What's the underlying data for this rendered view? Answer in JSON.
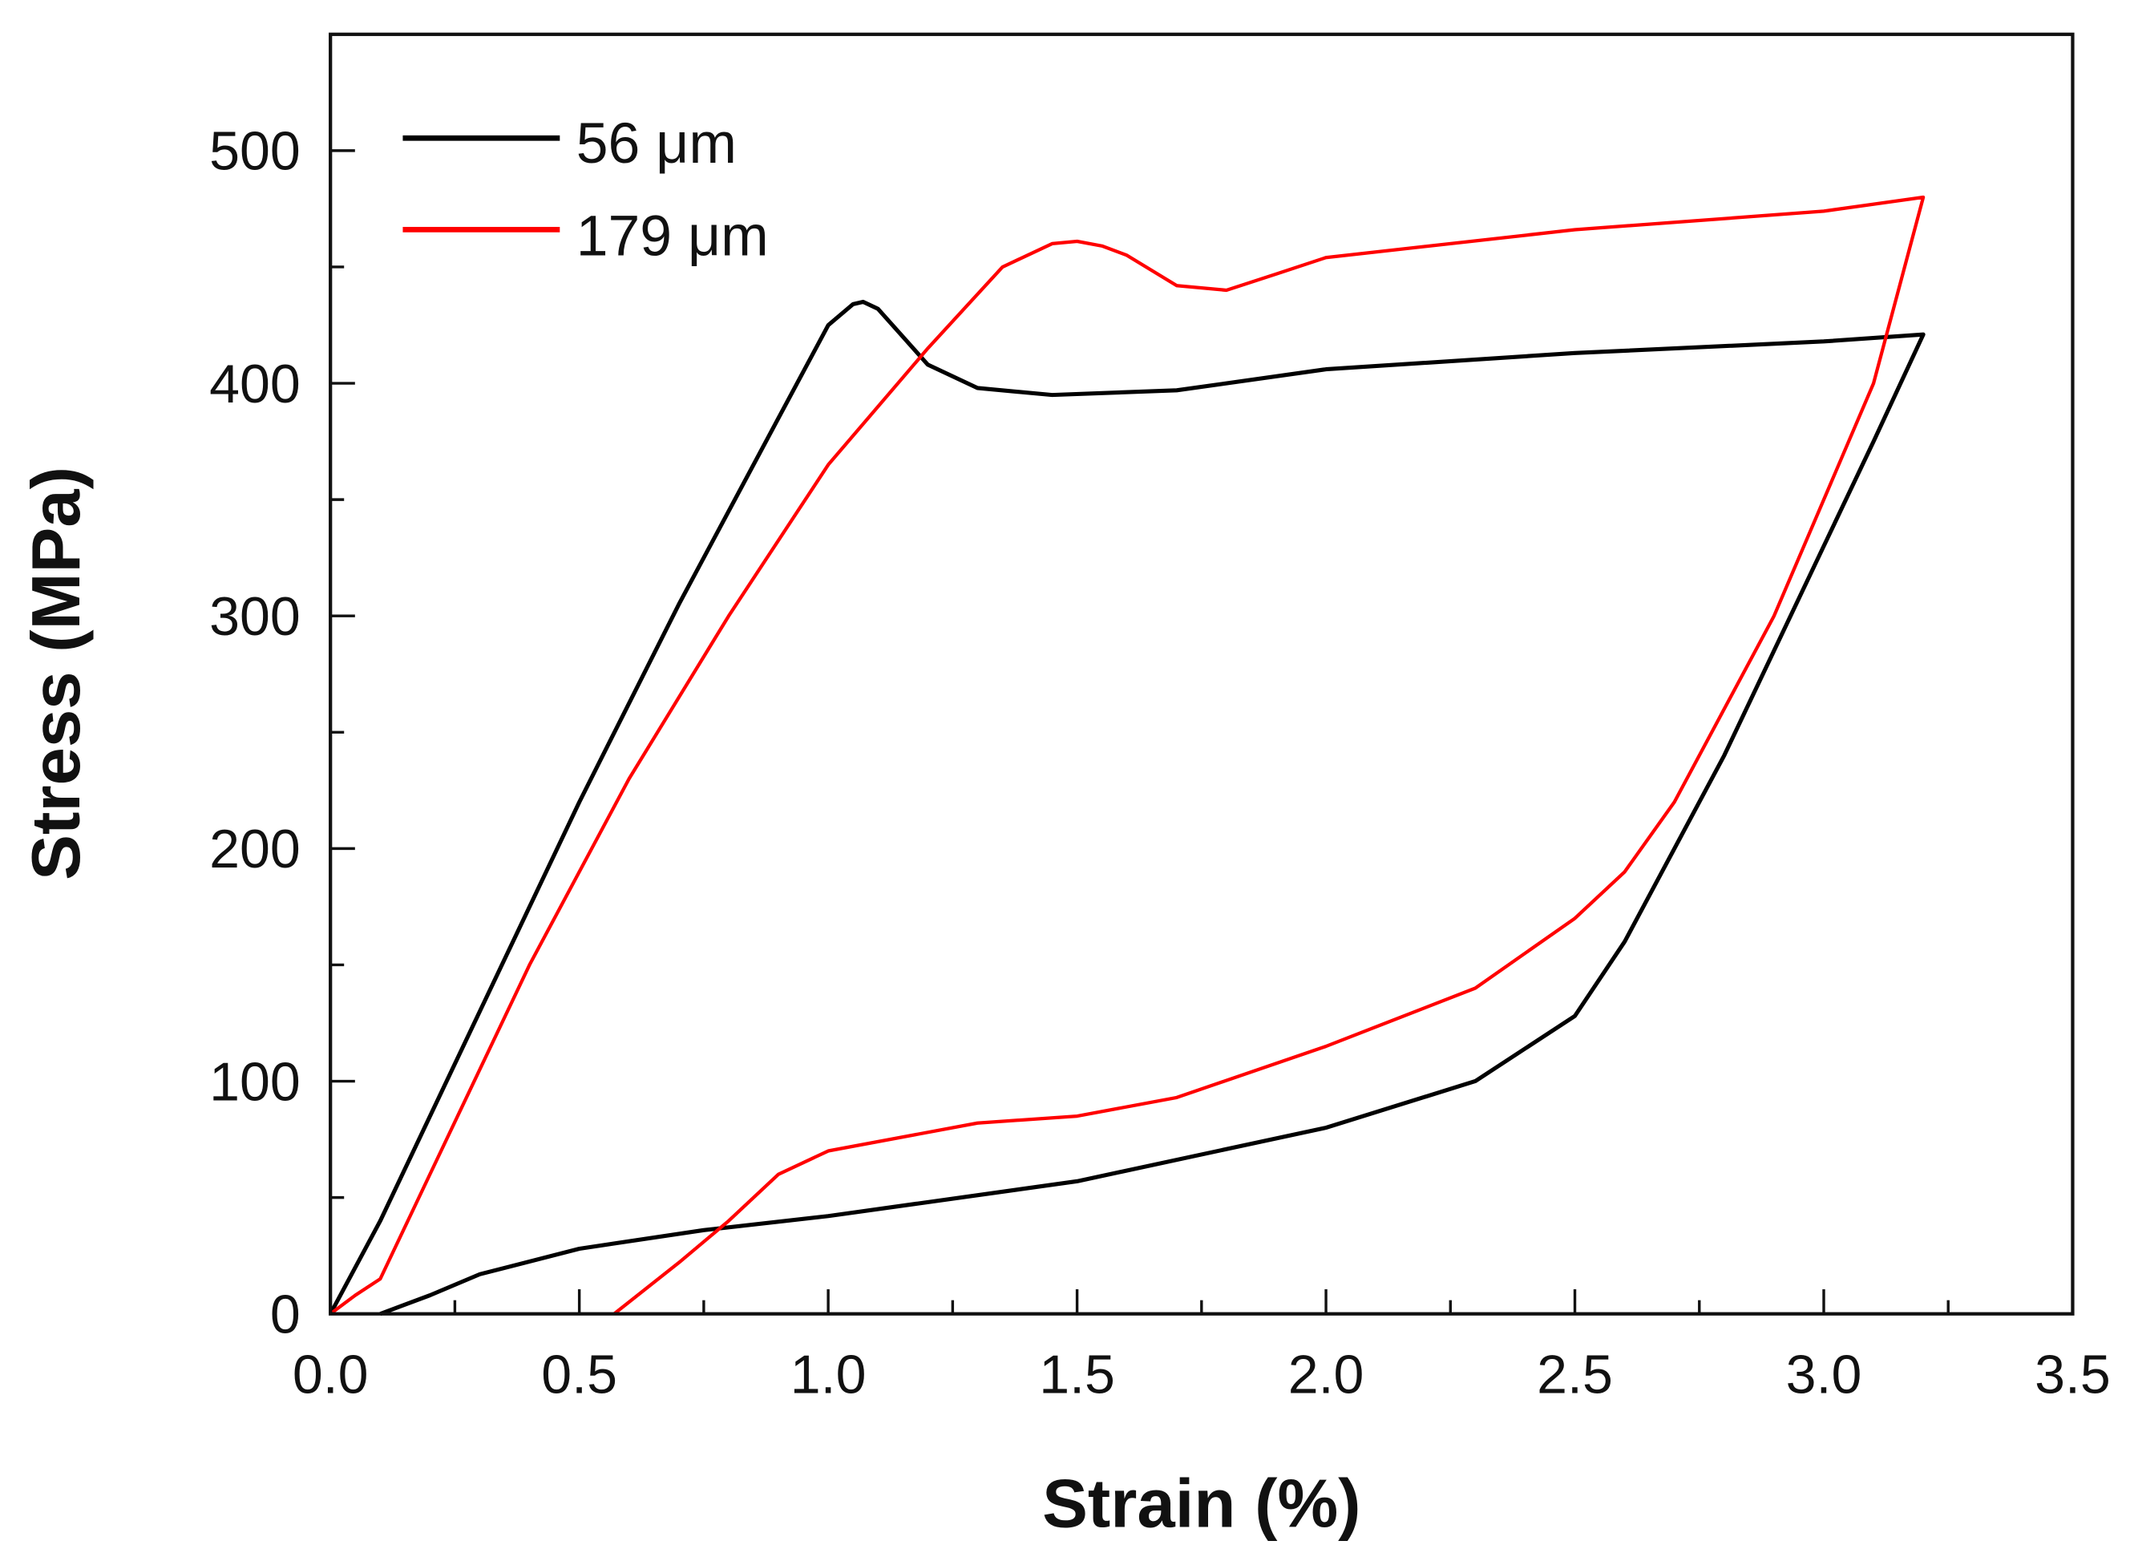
{
  "chart_data": {
    "type": "line",
    "title": "",
    "xlabel": "Strain (%)",
    "ylabel": "Stress (MPa)",
    "xlim": [
      0,
      3.5
    ],
    "ylim": [
      0,
      550
    ],
    "xticks": [
      "0.0",
      "0.5",
      "1.0",
      "1.5",
      "2.0",
      "2.5",
      "3.0",
      "3.5"
    ],
    "xtick_values": [
      0,
      0.5,
      1.0,
      1.5,
      2.0,
      2.5,
      3.0,
      3.5
    ],
    "yticks": [
      "0",
      "100",
      "200",
      "300",
      "400",
      "500"
    ],
    "ytick_values": [
      0,
      100,
      200,
      300,
      400,
      500
    ],
    "grid": false,
    "legend_position": "top-left",
    "series": [
      {
        "name": "56 μm",
        "color": "#000000",
        "x": [
          0,
          0.1,
          0.3,
          0.5,
          0.7,
          0.9,
          1.0,
          1.05,
          1.07,
          1.1,
          1.15,
          1.2,
          1.3,
          1.45,
          1.7,
          2.0,
          2.5,
          3.0,
          3.2,
          3.1,
          3.0,
          2.8,
          2.6,
          2.5,
          2.3,
          2.0,
          1.5,
          1.0,
          0.75,
          0.5,
          0.3,
          0.2,
          0.1
        ],
        "y": [
          0,
          40,
          130,
          220,
          305,
          385,
          425,
          434,
          435,
          432,
          420,
          408,
          398,
          395,
          397,
          406,
          413,
          418,
          421,
          375,
          330,
          240,
          160,
          128,
          100,
          80,
          57,
          42,
          36,
          28,
          17,
          8,
          0
        ]
      },
      {
        "name": "179 μm",
        "color": "#ff0000",
        "x": [
          0,
          0.05,
          0.1,
          0.2,
          0.4,
          0.6,
          0.8,
          1.0,
          1.2,
          1.35,
          1.45,
          1.5,
          1.55,
          1.6,
          1.7,
          1.8,
          1.9,
          2.0,
          2.5,
          3.0,
          3.2,
          3.1,
          2.9,
          2.7,
          2.6,
          2.5,
          2.3,
          2.0,
          1.7,
          1.5,
          1.3,
          1.0,
          0.9,
          0.8,
          0.7,
          0.57
        ],
        "y": [
          0,
          8,
          15,
          60,
          150,
          230,
          300,
          365,
          415,
          450,
          460,
          461,
          459,
          455,
          442,
          440,
          447,
          454,
          466,
          474,
          480,
          400,
          300,
          220,
          190,
          170,
          140,
          115,
          93,
          85,
          82,
          70,
          60,
          40,
          22,
          0
        ]
      }
    ]
  }
}
